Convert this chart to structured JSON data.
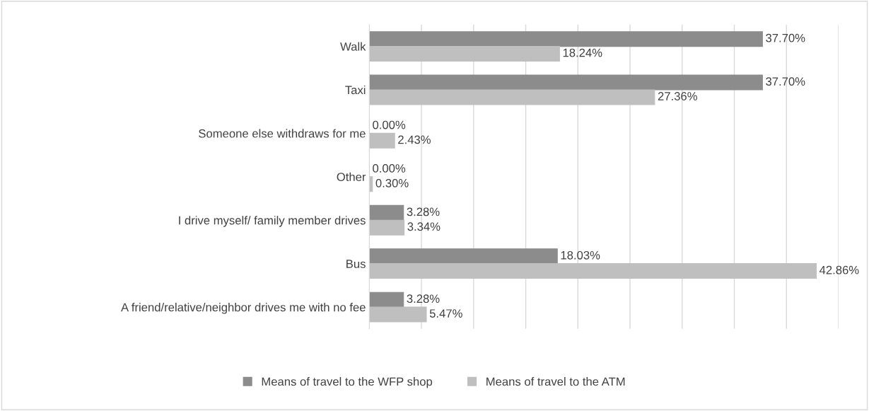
{
  "chart_data": {
    "type": "bar",
    "orientation": "horizontal",
    "categories": [
      "Walk",
      "Taxi",
      "Someone else withdraws for me",
      "Other",
      "I drive myself/ family member drives",
      "Bus",
      "A friend/relative/neighbor drives me with no fee"
    ],
    "series": [
      {
        "name": "Means of travel to the WFP shop",
        "color": "#8c8c8c",
        "values": [
          37.7,
          37.7,
          0.0,
          0.0,
          3.28,
          18.03,
          3.28
        ],
        "value_labels": [
          "37.70%",
          "37.70%",
          "0.00%",
          "0.00%",
          "3.28%",
          "18.03%",
          "3.28%"
        ]
      },
      {
        "name": "Means of travel to the ATM",
        "color": "#bfbfbf",
        "values": [
          18.24,
          27.36,
          2.43,
          0.3,
          3.34,
          42.86,
          5.47
        ],
        "value_labels": [
          "18.24%",
          "27.36%",
          "2.43%",
          "0.30%",
          "3.34%",
          "42.86%",
          "5.47%"
        ]
      }
    ],
    "xlim": [
      0,
      45
    ],
    "xticks": [
      {
        "value": 0,
        "label": null
      },
      {
        "value": 5,
        "label": null
      },
      {
        "value": 10,
        "label": null
      },
      {
        "value": 15,
        "label": null
      },
      {
        "value": 20,
        "label": null
      },
      {
        "value": 25,
        "label": null
      },
      {
        "value": 30,
        "label": null
      },
      {
        "value": 35,
        "label": null
      },
      {
        "value": 40,
        "label": null
      },
      {
        "value": 45,
        "label": null
      }
    ],
    "grid": "x",
    "tick_labels": "y",
    "legend": "bottom"
  }
}
